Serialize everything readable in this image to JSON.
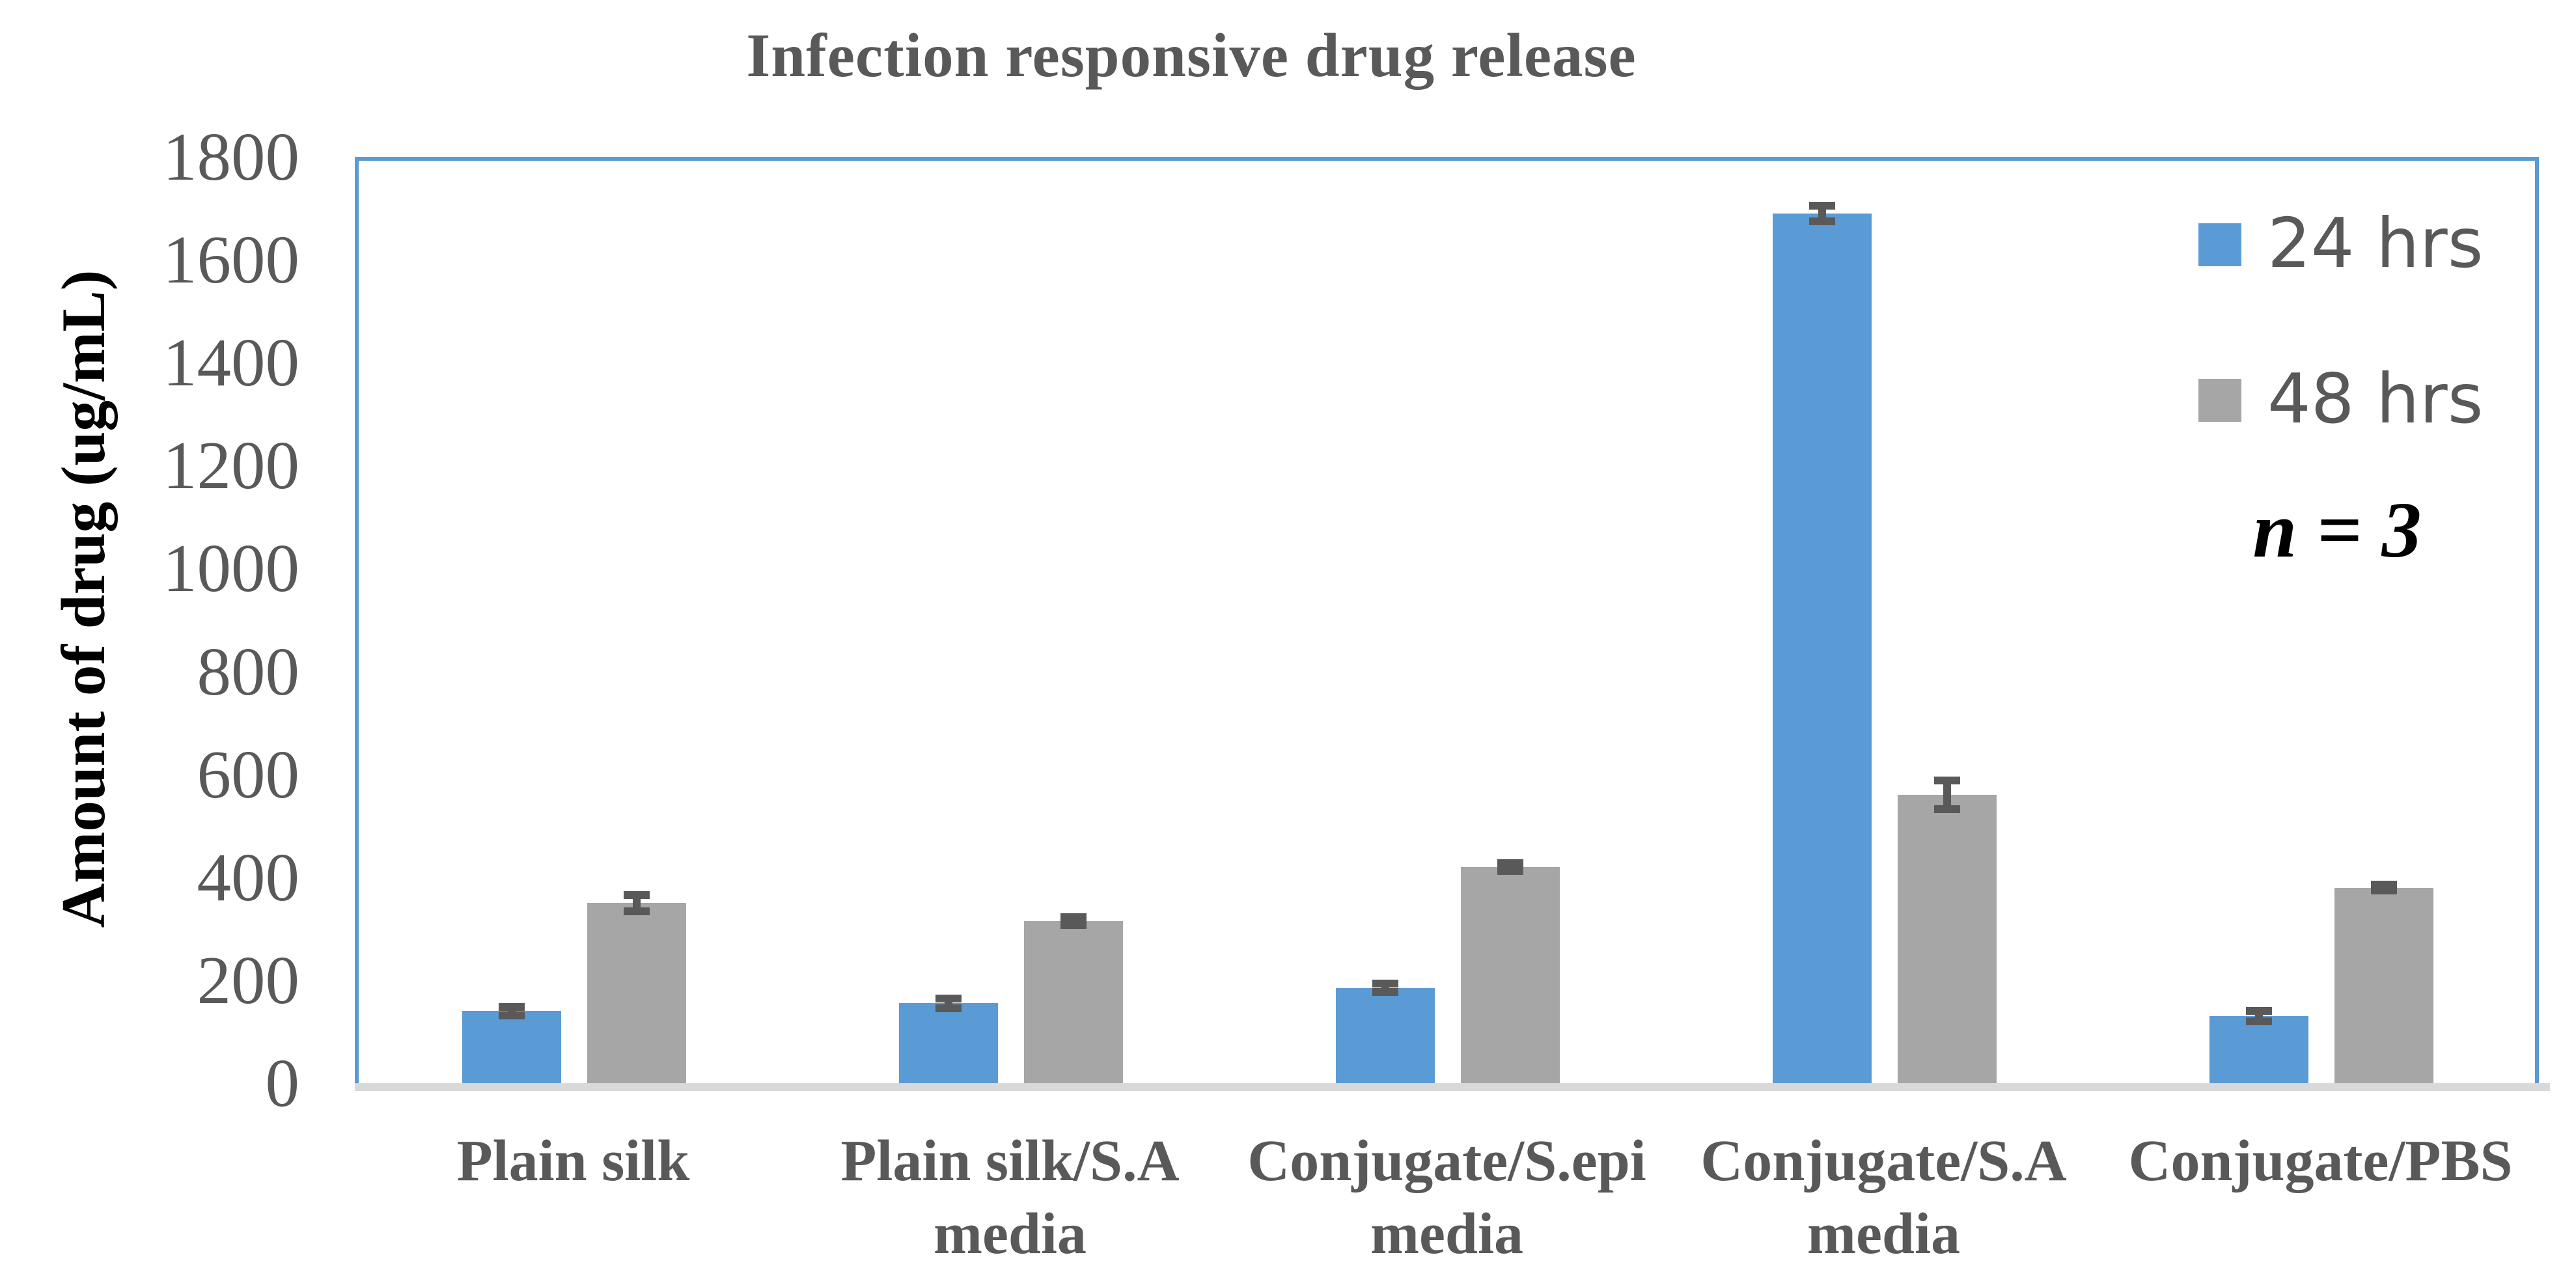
{
  "chart": {
    "title": "Infection responsive drug release",
    "ylabel": "Amount of drug (ug/mL)",
    "annotation": "n = 3",
    "legend": [
      {
        "label": "24 hrs",
        "color": "#5B9BD5"
      },
      {
        "label": "48 hrs",
        "color": "#A6A6A6"
      }
    ]
  },
  "colors": {
    "series_24hrs": "#5B9BD5",
    "series_48hrs": "#A6A6A6",
    "error_bar": "#595959",
    "plot_border": "#5B9BD5",
    "baseline": "#D9D9D9",
    "text_gray": "#595959",
    "text_black": "#000000"
  },
  "chart_data": {
    "type": "bar",
    "title": "Infection responsive drug release",
    "xlabel": "",
    "ylabel": "Amount of drug (ug/mL)",
    "ylim": [
      0,
      1800
    ],
    "ytick_step": 200,
    "yticks": [
      "0",
      "200",
      "400",
      "600",
      "800",
      "1000",
      "1200",
      "1400",
      "1600",
      "1800"
    ],
    "grid": false,
    "legend_position": "inside-top-right",
    "annotation": "n = 3",
    "categories": [
      "Plain silk",
      "Plain silk/S.A media",
      "Conjugate/S.epi media",
      "Conjugate/S.A media",
      "Conjugate/PBS"
    ],
    "category_lines": [
      [
        "Plain silk"
      ],
      [
        "Plain silk/S.A",
        "media"
      ],
      [
        "Conjugate/S.epi",
        "media"
      ],
      [
        "Conjugate/S.A",
        "media"
      ],
      [
        "Conjugate/PBS"
      ]
    ],
    "series": [
      {
        "name": "24 hrs",
        "color": "#5B9BD5",
        "values": [
          140,
          155,
          185,
          1690,
          130
        ],
        "errors": [
          8,
          9,
          8,
          15,
          10
        ]
      },
      {
        "name": "48 hrs",
        "color": "#A6A6A6",
        "values": [
          350,
          315,
          420,
          560,
          380
        ],
        "errors": [
          16,
          7,
          8,
          28,
          6
        ]
      }
    ]
  }
}
